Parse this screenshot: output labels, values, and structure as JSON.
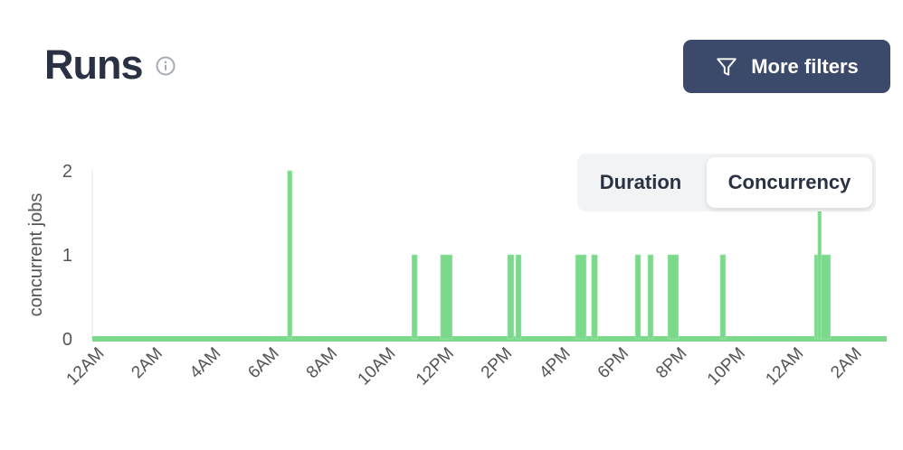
{
  "header": {
    "title": "Runs",
    "info_icon": "info-circle-icon",
    "more_filters_label": "More filters",
    "filter_icon": "funnel-icon"
  },
  "view_toggle": {
    "options": [
      "Duration",
      "Concurrency"
    ],
    "selected": "Concurrency"
  },
  "colors": {
    "series": "#7ad98a",
    "button_bg": "#3b4a6b",
    "text": "#2a3142"
  },
  "chart_data": {
    "type": "area",
    "step": true,
    "ylabel": "concurrent jobs",
    "xlabel": "",
    "ylim": [
      0,
      2
    ],
    "yticks": [
      0,
      1,
      2
    ],
    "xticks": [
      "12AM",
      "2AM",
      "4AM",
      "6AM",
      "8AM",
      "10AM",
      "12PM",
      "2PM",
      "4PM",
      "6PM",
      "8PM",
      "10PM",
      "12AM",
      "2AM"
    ],
    "baseline_value": 0,
    "intervals": [
      {
        "start": "06:31",
        "end": "06:40",
        "value": 2
      },
      {
        "start": "10:47",
        "end": "10:58",
        "value": 1
      },
      {
        "start": "11:46",
        "end": "12:10",
        "value": 1
      },
      {
        "start": "14:04",
        "end": "14:17",
        "value": 1
      },
      {
        "start": "14:21",
        "end": "14:32",
        "value": 1
      },
      {
        "start": "16:24",
        "end": "16:46",
        "value": 1
      },
      {
        "start": "16:57",
        "end": "17:09",
        "value": 1
      },
      {
        "start": "18:27",
        "end": "18:38",
        "value": 1
      },
      {
        "start": "18:53",
        "end": "19:04",
        "value": 1
      },
      {
        "start": "19:34",
        "end": "19:56",
        "value": 1
      },
      {
        "start": "21:22",
        "end": "21:33",
        "value": 1
      },
      {
        "start": "24:36",
        "end": "24:43",
        "value": 1
      },
      {
        "start": "24:43",
        "end": "24:50",
        "value": 2
      },
      {
        "start": "24:50",
        "end": "25:09",
        "value": 1
      }
    ],
    "grid": false,
    "legend": "none"
  }
}
